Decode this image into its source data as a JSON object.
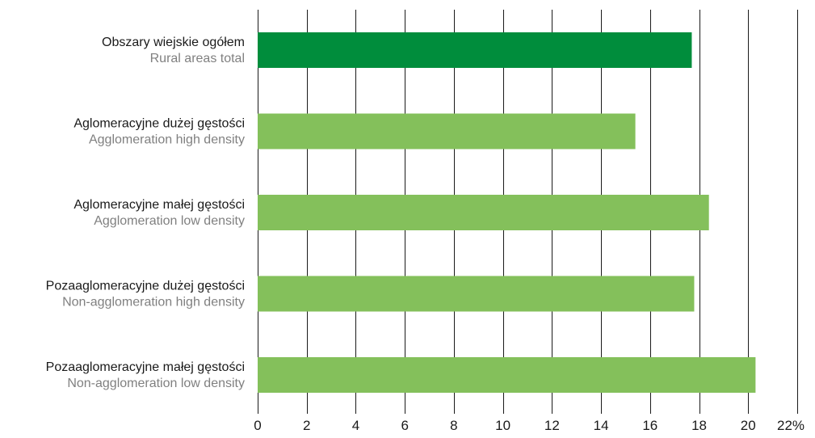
{
  "chart_data": {
    "type": "bar",
    "orientation": "horizontal",
    "categories": [
      {
        "label_pl": "Obszary wiejskie ogółem",
        "label_en": "Rural areas total"
      },
      {
        "label_pl": "Aglomeracyjne dużej gęstości",
        "label_en": "Agglomeration high density"
      },
      {
        "label_pl": "Aglomeracyjne małej gęstości",
        "label_en": "Agglomeration low density"
      },
      {
        "label_pl": "Pozaaglomeracyjne dużej gęstości",
        "label_en": "Non-agglomeration high density"
      },
      {
        "label_pl": "Pozaaglomeracyjne małej gęstości",
        "label_en": "Non-agglomeration low density"
      }
    ],
    "values": [
      17.7,
      15.4,
      18.4,
      17.8,
      20.3
    ],
    "highlight_index": 0,
    "xlim": [
      0,
      22
    ],
    "xticks": [
      0,
      2,
      4,
      6,
      8,
      10,
      12,
      14,
      16,
      18,
      20,
      22
    ],
    "xtick_labels": [
      "0",
      "2",
      "4",
      "6",
      "8",
      "10",
      "12",
      "14",
      "16",
      "18",
      "20",
      "22%"
    ],
    "grid": true,
    "colors": {
      "highlight": "#008d3c",
      "bar": "#84c05b",
      "grid": "#1a1a1a",
      "label_primary": "#1a1a1a",
      "label_secondary": "#808080",
      "tick": "#1a1a1a"
    }
  }
}
